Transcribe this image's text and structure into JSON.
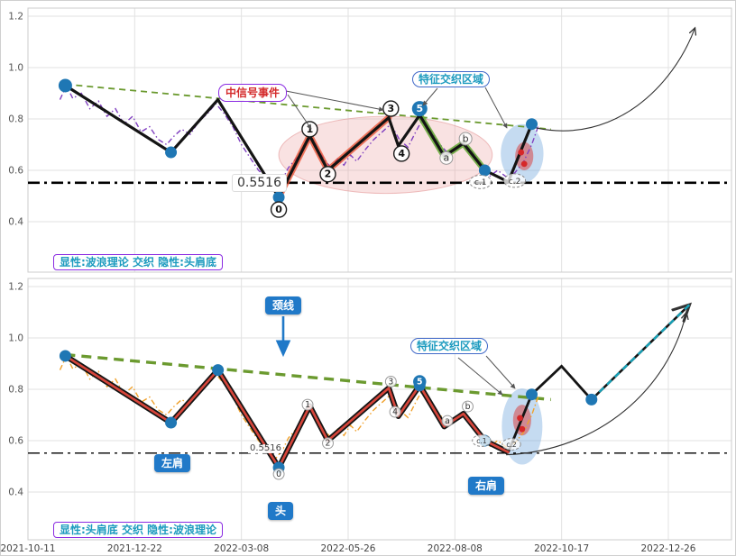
{
  "captions": {
    "top": "显性:波浪理论 交织 隐性:头肩底",
    "bottom": "显性:头肩底 交织 隐性:波浪理论"
  },
  "annotations": {
    "signal_event": "中信号事件",
    "feature_zone": "特征交织区域",
    "neckline": "颈线",
    "left_shoulder": "左肩",
    "head": "头",
    "right_shoulder": "右肩"
  },
  "levels": {
    "value": 0.5516,
    "label": "0.5516"
  },
  "colors": {
    "marker": "#1f77b4",
    "zigzag": "#141414",
    "neckline": "#6b9a2f",
    "price_top": "#8040c0",
    "price_bottom": "#f0a12c",
    "projection": "#17a2b8",
    "red_overlay": "#d6453a",
    "green_overlay": "#5fa030",
    "accent_blue": "#2079c8",
    "teal_text": "#1d9bbf",
    "purple_border": "#8a2be2",
    "signal_red": "#d42a2a"
  },
  "chart_data": {
    "type": "line",
    "x_tick_labels": [
      "2021-10-11",
      "2021-12-22",
      "2022-03-08",
      "2022-05-26",
      "2022-08-08",
      "2022-10-17",
      "2022-12-26"
    ],
    "y_ticks": [
      0.4,
      0.6,
      0.8,
      1.0,
      1.2
    ],
    "ylim": [
      0.21,
      1.23
    ],
    "level_line": 0.5516,
    "shared": {
      "zigzag_x": [
        0.35,
        1.34,
        1.78,
        2.35,
        2.64,
        2.81,
        3.38,
        3.47,
        3.67,
        3.9,
        4.08,
        4.28,
        4.5,
        4.72
      ],
      "zigzag_v": [
        0.93,
        0.67,
        0.875,
        0.495,
        0.735,
        0.6,
        0.805,
        0.695,
        0.815,
        0.655,
        0.705,
        0.6,
        0.555,
        0.78
      ],
      "price_x": [
        0.3,
        0.36,
        0.42,
        0.5,
        0.58,
        0.66,
        0.74,
        0.82,
        0.9,
        0.98,
        1.06,
        1.14,
        1.22,
        1.3,
        1.36,
        1.44,
        1.52,
        1.6,
        1.68,
        1.76,
        1.84,
        1.92,
        2.0,
        2.08,
        2.16,
        2.24,
        2.32,
        2.38,
        2.44,
        2.52,
        2.6,
        2.66,
        2.72,
        2.78,
        2.84,
        2.9,
        2.96,
        3.02,
        3.08,
        3.16,
        3.24,
        3.32,
        3.4,
        3.48,
        3.56,
        3.64,
        3.7,
        3.78,
        3.86,
        3.94,
        4.02,
        4.1,
        4.18,
        4.26,
        4.32,
        4.4,
        4.48,
        4.56,
        4.64,
        4.72,
        4.78
      ],
      "price_v": [
        0.875,
        0.93,
        0.88,
        0.9,
        0.84,
        0.87,
        0.81,
        0.84,
        0.78,
        0.81,
        0.75,
        0.77,
        0.72,
        0.7,
        0.73,
        0.76,
        0.74,
        0.79,
        0.82,
        0.86,
        0.82,
        0.77,
        0.7,
        0.65,
        0.6,
        0.57,
        0.53,
        0.56,
        0.61,
        0.65,
        0.7,
        0.73,
        0.68,
        0.64,
        0.61,
        0.645,
        0.62,
        0.66,
        0.635,
        0.68,
        0.72,
        0.75,
        0.78,
        0.72,
        0.69,
        0.755,
        0.8,
        0.75,
        0.7,
        0.665,
        0.69,
        0.705,
        0.66,
        0.6,
        0.575,
        0.6,
        0.575,
        0.59,
        0.63,
        0.7,
        0.77
      ],
      "neckline": {
        "x": [
          0.35,
          4.9
        ],
        "v": [
          0.935,
          0.76
        ]
      }
    },
    "panels": [
      {
        "id": "elliott-wave",
        "caption": "显性:波浪理论 交织 隐性:头肩底",
        "price_color": "#8040c0",
        "overlays": [
          {
            "i0": 3,
            "i1": 6,
            "color": "rgba(235,78,45,0.75)",
            "w": 7
          },
          {
            "i0": 8,
            "i1": 11,
            "color": "rgba(98,168,50,0.85)",
            "w": 7
          }
        ],
        "markers": [
          [
            0.35,
            0.93
          ],
          [
            1.34,
            0.67
          ],
          [
            2.35,
            0.495
          ],
          [
            4.28,
            0.6
          ],
          [
            4.72,
            0.78
          ]
        ],
        "red_dots": [
          [
            4.62,
            0.67
          ],
          [
            4.65,
            0.625
          ]
        ],
        "ellipses": [
          {
            "cx": 3.35,
            "cv": 0.66,
            "rx": 1.0,
            "rv": 0.15,
            "fill": "rgba(235,150,150,0.28)",
            "stroke": "rgba(220,120,120,0.45)"
          },
          {
            "cx": 4.63,
            "cv": 0.665,
            "rx": 0.2,
            "rv": 0.115,
            "fill": "rgba(110,165,220,0.40)",
            "stroke": "none"
          },
          {
            "cx": 4.65,
            "cv": 0.655,
            "rx": 0.085,
            "rv": 0.055,
            "fill": "rgba(215,70,70,0.55)",
            "stroke": "none"
          }
        ],
        "wave_labels": [
          {
            "t": "0",
            "x": 2.35,
            "v": 0.447,
            "k": "c"
          },
          {
            "t": "1",
            "x": 2.64,
            "v": 0.76,
            "k": "c"
          },
          {
            "t": "2",
            "x": 2.81,
            "v": 0.585,
            "k": "c"
          },
          {
            "t": "3",
            "x": 3.4,
            "v": 0.84,
            "k": "c"
          },
          {
            "t": "4",
            "x": 3.5,
            "v": 0.665,
            "k": "c"
          },
          {
            "t": "5",
            "x": 3.67,
            "v": 0.84,
            "k": "c5"
          },
          {
            "t": "a",
            "x": 3.92,
            "v": 0.648,
            "k": "s"
          },
          {
            "t": "b",
            "x": 4.1,
            "v": 0.723,
            "k": "s"
          },
          {
            "t": "c.1",
            "x": 4.24,
            "v": 0.555,
            "k": "e"
          },
          {
            "t": "c.2",
            "x": 4.56,
            "v": 0.56,
            "k": "e"
          }
        ],
        "arrow": {
          "from": [
            4.76,
            0.765
          ],
          "c1": [
            5.5,
            0.7
          ],
          "c2": [
            6.05,
            0.93
          ],
          "to": [
            6.25,
            1.155
          ]
        }
      },
      {
        "id": "head-shoulders",
        "caption": "显性:头肩底 交织 隐性:波浪理论",
        "price_color": "#f0a12c",
        "extra_x": [
          5.0,
          5.28
        ],
        "extra_v": [
          0.89,
          0.76
        ],
        "projection": {
          "x": [
            5.28,
            6.2
          ],
          "v": [
            0.76,
            1.13
          ]
        },
        "overlays": [
          {
            "i0": 0,
            "i1": 12,
            "color": "#d6453a",
            "w": 2.7
          }
        ],
        "markers": [
          [
            0.35,
            0.93
          ],
          [
            1.34,
            0.67
          ],
          [
            1.78,
            0.875
          ],
          [
            2.35,
            0.495
          ],
          [
            3.67,
            0.815
          ],
          [
            4.28,
            0.6
          ],
          [
            4.72,
            0.78
          ],
          [
            5.28,
            0.76
          ]
        ],
        "red_dots": [
          [
            4.61,
            0.688
          ],
          [
            4.63,
            0.645
          ]
        ],
        "ellipses": [
          {
            "cx": 4.63,
            "cv": 0.655,
            "rx": 0.19,
            "rv": 0.148,
            "fill": "rgba(110,165,220,0.40)",
            "stroke": "none"
          },
          {
            "cx": 4.63,
            "cv": 0.68,
            "rx": 0.085,
            "rv": 0.06,
            "fill": "rgba(215,70,70,0.55)",
            "stroke": "none"
          }
        ],
        "wave_labels": [
          {
            "t": "0",
            "x": 2.35,
            "v": 0.47,
            "k": "s"
          },
          {
            "t": "1",
            "x": 2.62,
            "v": 0.74,
            "k": "s"
          },
          {
            "t": "2",
            "x": 2.81,
            "v": 0.59,
            "k": "s"
          },
          {
            "t": "3",
            "x": 3.4,
            "v": 0.83,
            "k": "s"
          },
          {
            "t": "4",
            "x": 3.44,
            "v": 0.712,
            "k": "s"
          },
          {
            "t": "5",
            "x": 3.67,
            "v": 0.83,
            "k": "c5"
          },
          {
            "t": "a",
            "x": 3.93,
            "v": 0.677,
            "k": "s"
          },
          {
            "t": "b",
            "x": 4.12,
            "v": 0.733,
            "k": "s"
          },
          {
            "t": "c.1",
            "x": 4.25,
            "v": 0.6,
            "k": "e"
          },
          {
            "t": "c.2",
            "x": 4.53,
            "v": 0.586,
            "k": "e"
          }
        ],
        "arrow": {
          "from": [
            4.48,
            0.545
          ],
          "c1": [
            5.35,
            0.56
          ],
          "c2": [
            6.0,
            0.8
          ],
          "to": [
            6.17,
            1.1
          ]
        }
      }
    ]
  }
}
